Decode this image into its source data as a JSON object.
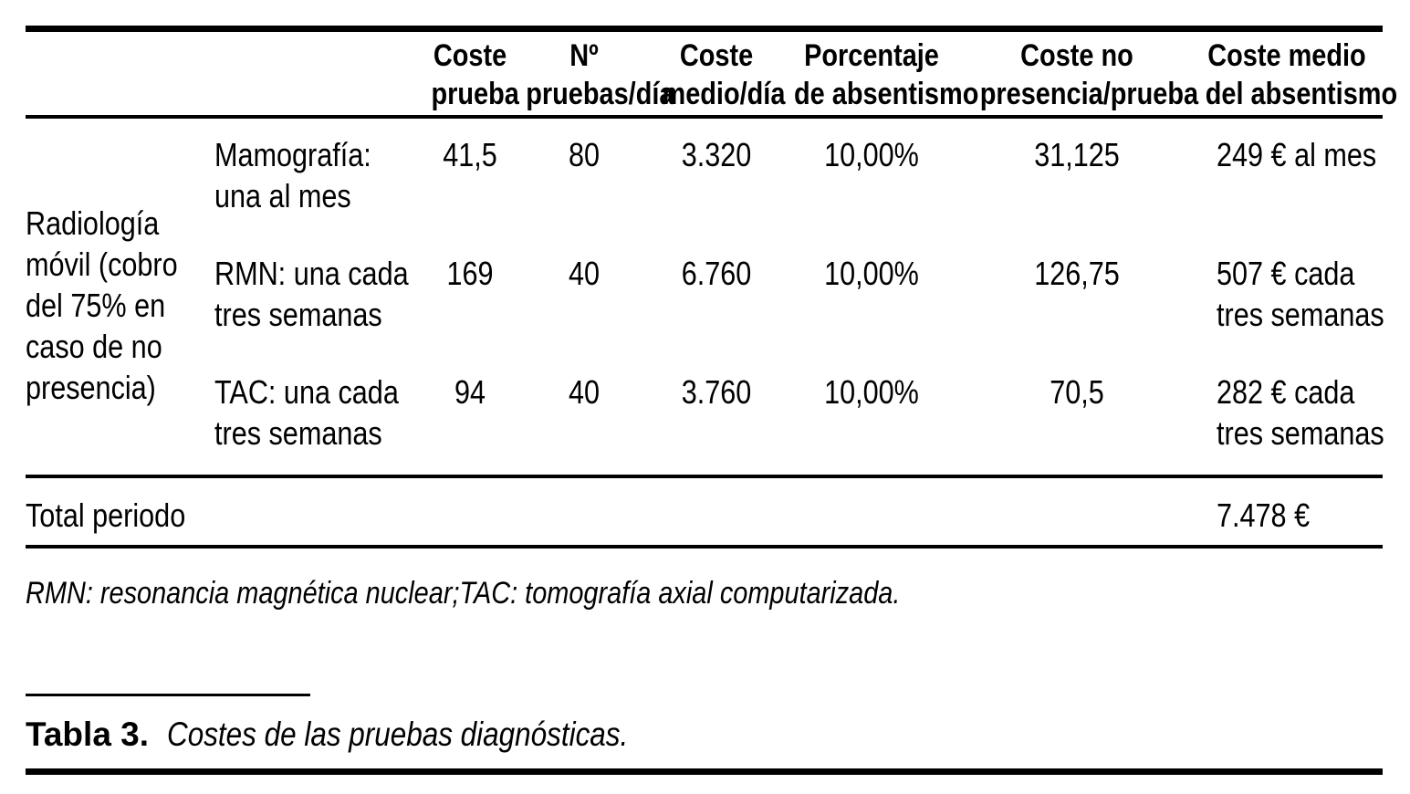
{
  "table": {
    "column_headers": [
      [
        "Coste",
        "prueba"
      ],
      [
        "Nº",
        "pruebas/día"
      ],
      [
        "Coste",
        "medio/día"
      ],
      [
        "Porcentaje",
        "de absentismo"
      ],
      [
        "Coste no",
        "presencia/prueba"
      ],
      [
        "Coste medio",
        "del absentismo"
      ]
    ],
    "row_group": {
      "label_lines": [
        "Radiología",
        "móvil (cobro",
        "del 75% en",
        "caso de no",
        "presencia)"
      ]
    },
    "rows": [
      {
        "name": [
          "Mamografía:",
          "una al mes"
        ],
        "coste_prueba": "41,5",
        "n_pruebas_dia": "80",
        "coste_medio_dia": "3.320",
        "porcentaje_absentismo": "10,00%",
        "coste_no_presencia_prueba": "31,125",
        "coste_medio_absentismo": [
          "249 € al mes"
        ]
      },
      {
        "name": [
          "RMN: una cada",
          "tres semanas"
        ],
        "coste_prueba": "169",
        "n_pruebas_dia": "40",
        "coste_medio_dia": "6.760",
        "porcentaje_absentismo": "10,00%",
        "coste_no_presencia_prueba": "126,75",
        "coste_medio_absentismo": [
          "507 € cada",
          "tres semanas"
        ]
      },
      {
        "name": [
          "TAC: una cada",
          "tres semanas"
        ],
        "coste_prueba": "94",
        "n_pruebas_dia": "40",
        "coste_medio_dia": "3.760",
        "porcentaje_absentismo": "10,00%",
        "coste_no_presencia_prueba": "70,5",
        "coste_medio_absentismo": [
          "282 € cada",
          "tres semanas"
        ]
      }
    ],
    "total_row": {
      "label": "Total periodo",
      "value": "7.478 €"
    },
    "footnote": "RMN: resonancia magnética nuclear;TAC: tomografía axial computarizada.",
    "caption": {
      "label": "Tabla 3.",
      "text": "Costes de las pruebas diagnósticas."
    }
  },
  "colors": {
    "text": "#000000",
    "background": "#ffffff",
    "rule": "#000000"
  }
}
